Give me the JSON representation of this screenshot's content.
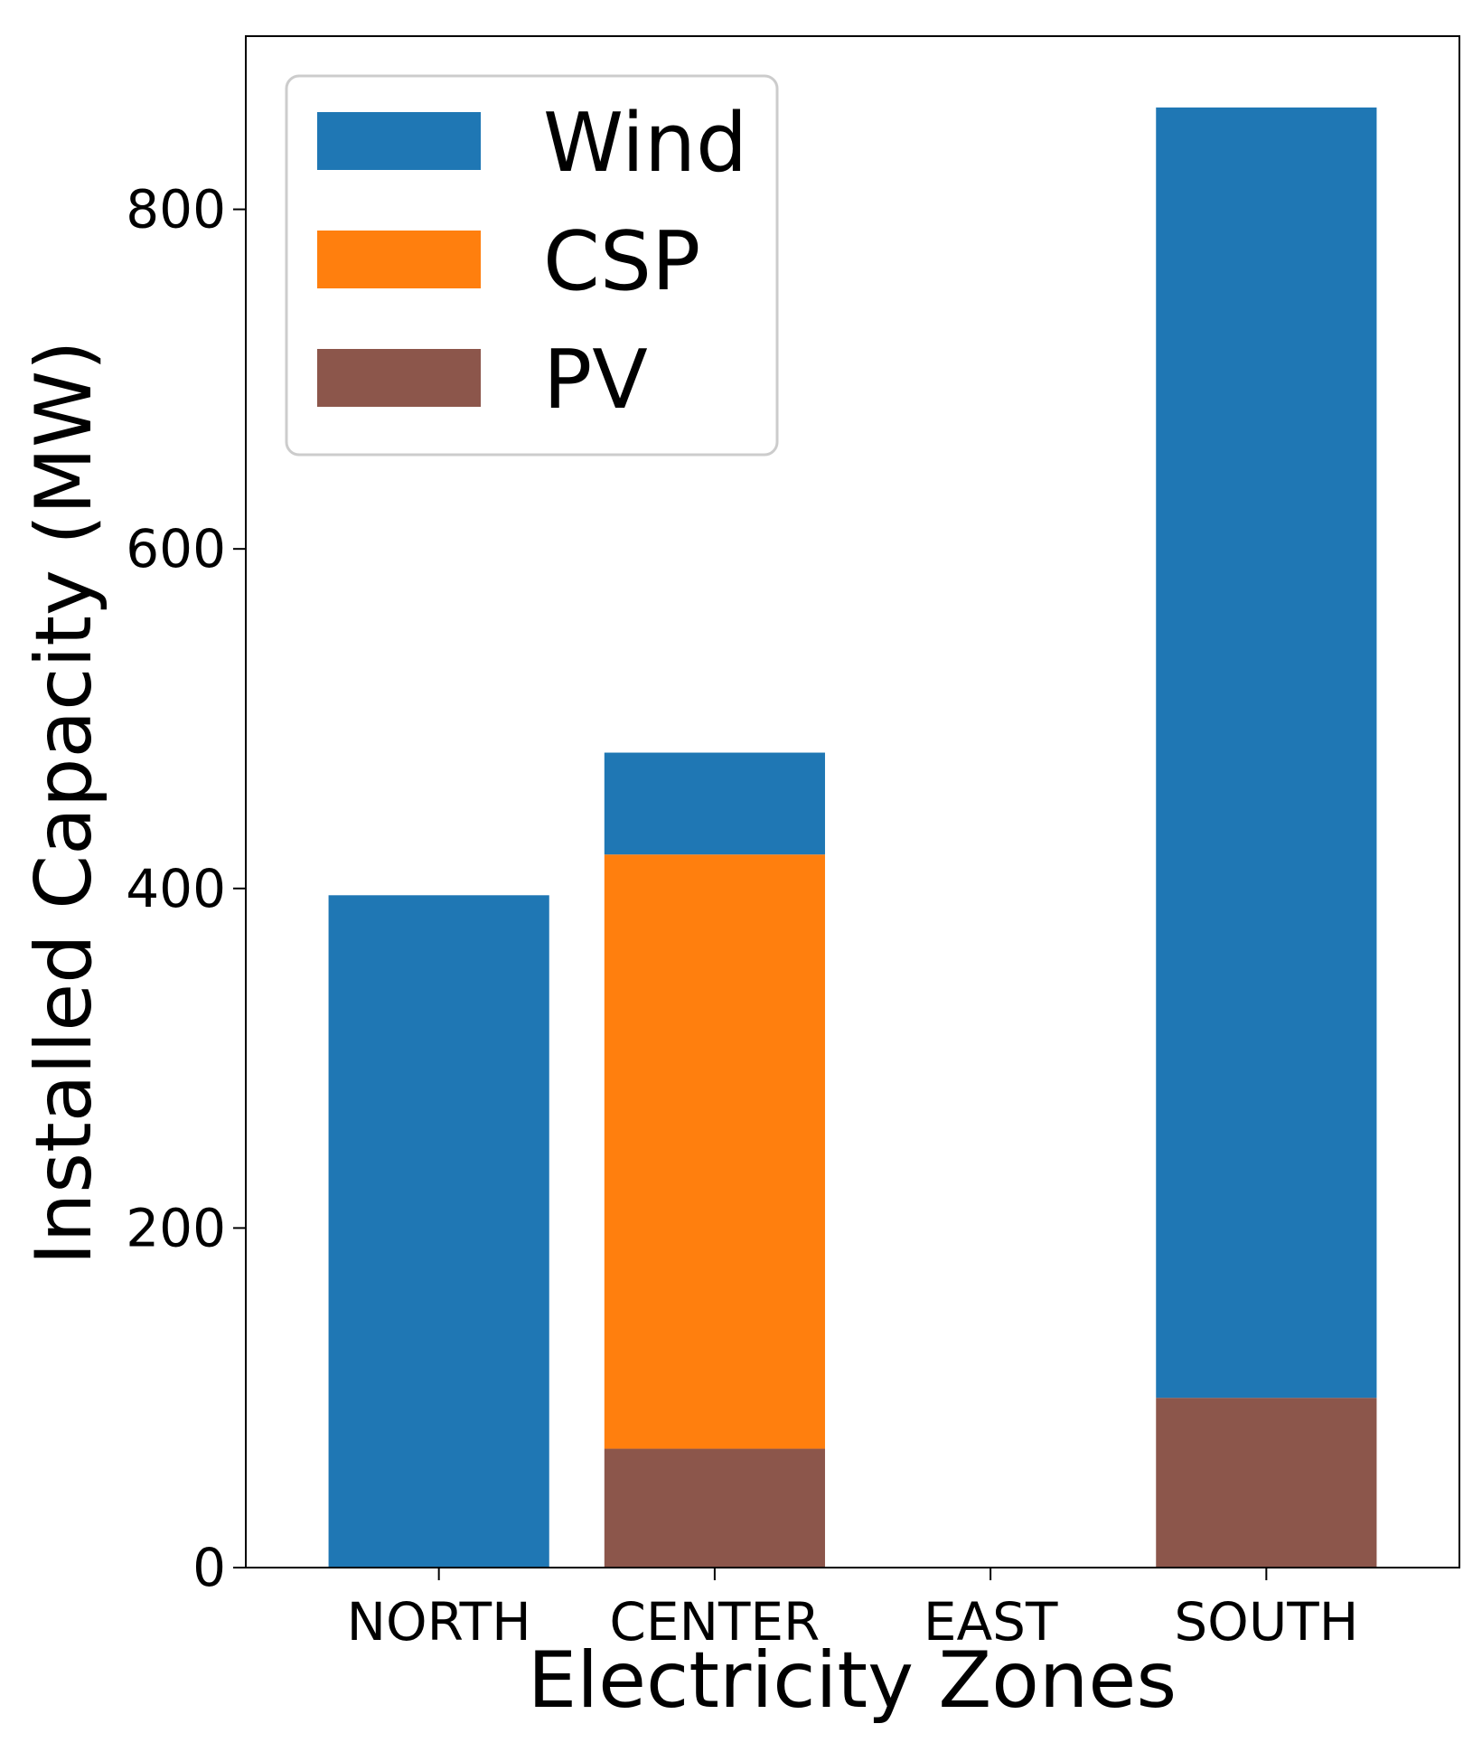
{
  "chart_data": {
    "type": "bar",
    "stacked": true,
    "title": "",
    "xlabel": "Electricity Zones",
    "ylabel": "Installed Capacity (MW)",
    "categories": [
      "NORTH",
      "CENTER",
      "EAST",
      "SOUTH"
    ],
    "series": [
      {
        "name": "PV",
        "color": "#8c564b",
        "values": [
          0,
          70,
          0,
          100
        ]
      },
      {
        "name": "CSP",
        "color": "#ff7f0e",
        "values": [
          0,
          350,
          0,
          0
        ]
      },
      {
        "name": "Wind",
        "color": "#1f77b4",
        "values": [
          396,
          60,
          0,
          760
        ]
      }
    ],
    "legend_order": [
      "Wind",
      "CSP",
      "PV"
    ],
    "legend_position": "top-left",
    "ylim": [
      0,
      902
    ],
    "yticks": [
      0,
      200,
      400,
      600,
      800
    ],
    "ytick_labels": [
      "0",
      "200",
      "400",
      "600",
      "800"
    ],
    "grid": false
  }
}
